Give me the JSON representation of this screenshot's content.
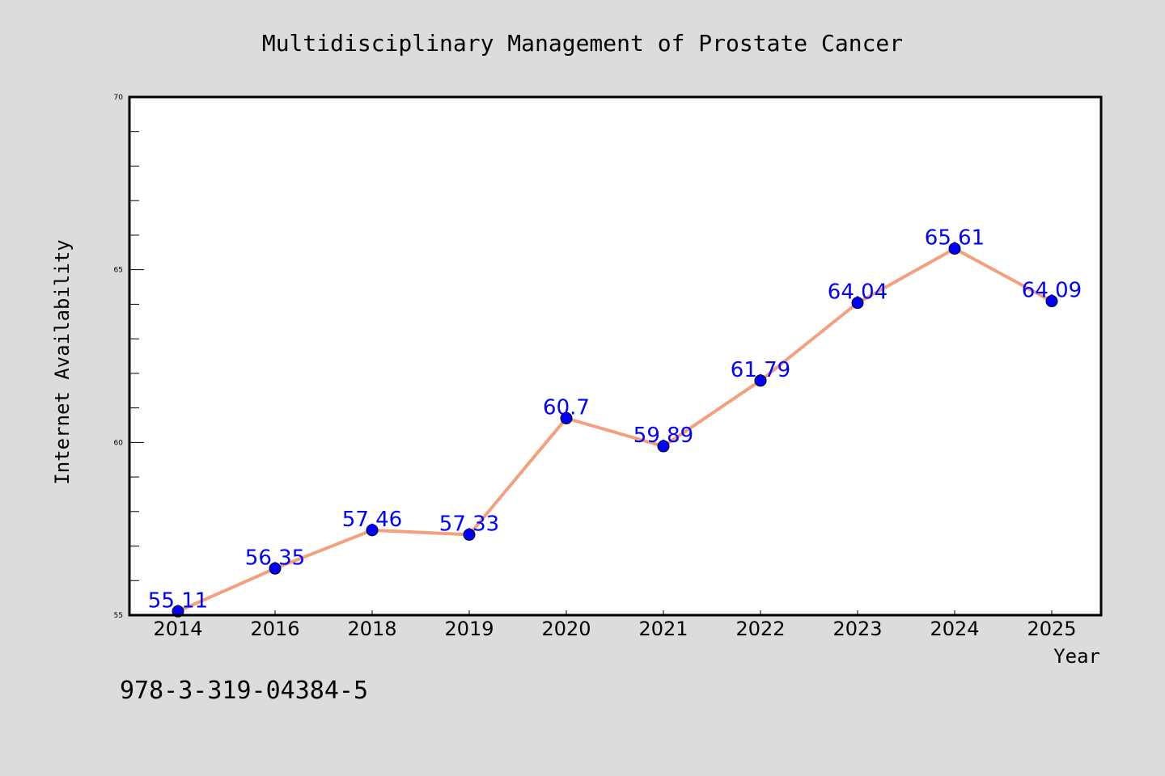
{
  "chart_data": {
    "type": "line",
    "title": "Multidisciplinary Management of Prostate Cancer",
    "xlabel": "Year",
    "ylabel": "Internet Availability",
    "categories": [
      "2014",
      "2016",
      "2018",
      "2019",
      "2020",
      "2021",
      "2022",
      "2023",
      "2024",
      "2025"
    ],
    "series": [
      {
        "values": [
          55.11,
          56.35,
          57.46,
          57.33,
          60.7,
          59.89,
          61.79,
          64.04,
          65.61,
          64.09
        ],
        "labels": [
          "55.11",
          "56.35",
          "57.46",
          "57.33",
          "60.7",
          "59.89",
          "61.79",
          "64.04",
          "65.61",
          "64.09"
        ]
      }
    ],
    "ylim": [
      55,
      70
    ],
    "yticks": [
      "55",
      "60",
      "65",
      "70"
    ],
    "grid": false,
    "legend": "none",
    "colors": {
      "line": "#f4a07e",
      "marker": "#0000ff",
      "label": "#0000ff",
      "background": "#dcdcdc",
      "plot_background": "#ffffff"
    }
  },
  "annotation": "978-3-319-04384-5"
}
